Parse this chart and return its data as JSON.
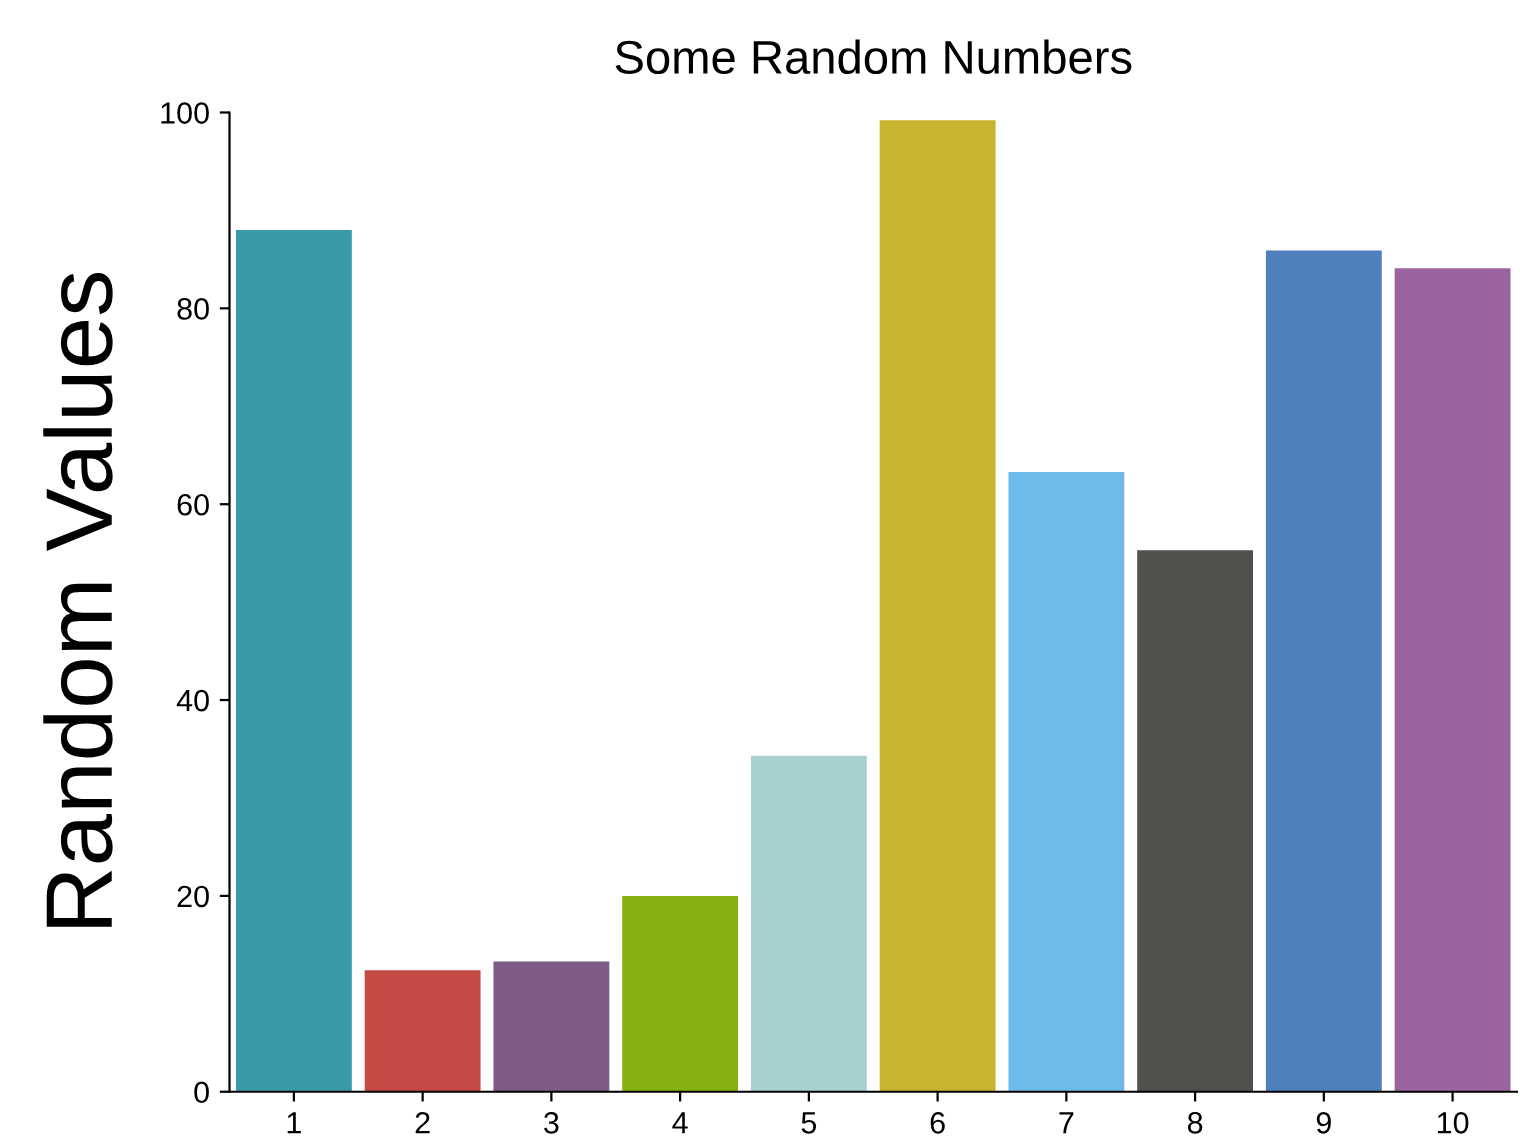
{
  "chart_data": {
    "type": "bar",
    "title": "Some Random Numbers",
    "ylabel": "Random Values",
    "categories": [
      "1",
      "2",
      "3",
      "4",
      "5",
      "6",
      "7",
      "8",
      "9",
      "10"
    ],
    "values": [
      88,
      12.4,
      13.3,
      20,
      34.3,
      99.2,
      63.3,
      55.3,
      85.9,
      84.1
    ],
    "colors": [
      "#3a9aaa",
      "#c44a45",
      "#7e5c85",
      "#86b211",
      "#a7d1d1",
      "#c8b42f",
      "#6dbbea",
      "#52504d",
      "#4f80bd",
      "#9b64a0"
    ],
    "ylim": [
      0,
      100
    ],
    "yticks": [
      0,
      20,
      40,
      60,
      80,
      100
    ],
    "grid": false,
    "legend": false
  }
}
